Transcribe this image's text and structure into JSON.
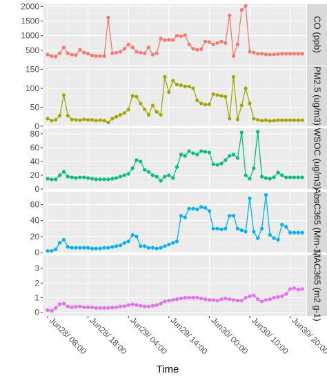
{
  "chart_data": {
    "type": "line",
    "xlabel": "Time",
    "x_tick_labels": [
      "Jun28/ 08:00",
      "Jun28/ 18:00",
      "Jun29/ 04:00",
      "Jun29/ 14:00",
      "Jun30/ 00:00",
      "Jun30/ 10:00",
      "Jun30/ 20:00"
    ],
    "x_tick_hours": [
      0,
      10,
      20,
      30,
      40,
      50,
      60
    ],
    "xlim_hours": [
      -1.2,
      64
    ],
    "x_hours": [
      0,
      1,
      2,
      3,
      4,
      5,
      6,
      7,
      8,
      9,
      10,
      11,
      12,
      13,
      14,
      15,
      16,
      17,
      18,
      19,
      20,
      21,
      22,
      23,
      24,
      25,
      26,
      27,
      28,
      29,
      30,
      31,
      32,
      33,
      34,
      35,
      36,
      37,
      38,
      39,
      40,
      41,
      42,
      43,
      44,
      45,
      46,
      47,
      48,
      49,
      50,
      51,
      52,
      53,
      54,
      55,
      56,
      57,
      58,
      59,
      60,
      61,
      62,
      63
    ],
    "grid": true,
    "legend": "none",
    "panels": [
      {
        "strip": "CO (ppb)",
        "color": "#F8766D",
        "ylim": [
          0,
          2080
        ],
        "yticks": [
          500,
          1000,
          1500,
          2000
        ],
        "ytick_labels": [
          "500",
          "1000",
          "1500",
          "2000"
        ],
        "values": [
          350,
          300,
          280,
          400,
          600,
          400,
          350,
          330,
          520,
          420,
          380,
          320,
          300,
          300,
          300,
          1620,
          400,
          420,
          450,
          550,
          700,
          600,
          450,
          420,
          400,
          600,
          350,
          400,
          900,
          850,
          860,
          850,
          1000,
          980,
          1020,
          700,
          550,
          520,
          540,
          800,
          780,
          700,
          750,
          800,
          750,
          1700,
          300,
          700,
          1880,
          2020,
          450,
          420,
          380,
          380,
          360,
          350,
          360,
          370,
          380,
          380,
          380,
          380,
          380,
          380
        ]
      },
      {
        "strip": "PM2.5 (ug/m3)",
        "color": "#A3A500",
        "ylim": [
          0,
          160
        ],
        "yticks": [
          0,
          50,
          100,
          150
        ],
        "ytick_labels": [
          "0",
          "50",
          "100",
          "150"
        ],
        "values": [
          20,
          15,
          17,
          28,
          82,
          28,
          18,
          17,
          16,
          18,
          17,
          17,
          15,
          16,
          15,
          10,
          20,
          25,
          30,
          35,
          44,
          80,
          78,
          60,
          45,
          30,
          55,
          38,
          30,
          130,
          90,
          120,
          110,
          108,
          105,
          105,
          100,
          68,
          60,
          57,
          58,
          85,
          82,
          80,
          78,
          20,
          130,
          18,
          55,
          100,
          60,
          20,
          17,
          15,
          16,
          14,
          15,
          16,
          16,
          16,
          16,
          16,
          16,
          16
        ]
      },
      {
        "strip": "WSOC (ug/m3)",
        "color": "#00BF7D",
        "ylim": [
          0,
          88
        ],
        "yticks": [
          0,
          20,
          40,
          60,
          80
        ],
        "ytick_labels": [
          "0",
          "20",
          "40",
          "60",
          "80"
        ],
        "values": [
          15,
          14,
          14,
          20,
          25,
          18,
          17,
          16,
          17,
          17,
          16,
          15,
          14,
          14,
          14,
          14,
          15,
          16,
          18,
          20,
          22,
          30,
          42,
          40,
          28,
          25,
          20,
          18,
          12,
          18,
          20,
          16,
          32,
          50,
          48,
          55,
          52,
          50,
          55,
          54,
          53,
          36,
          35,
          37,
          42,
          48,
          50,
          45,
          82,
          20,
          15,
          30,
          83,
          18,
          16,
          15,
          17,
          24,
          20,
          17,
          17,
          17,
          17,
          17
        ]
      },
      {
        "strip": "AbsC365 (Mm-1)",
        "color": "#00B0F6",
        "ylim": [
          0,
          76
        ],
        "yticks": [
          0,
          20,
          40,
          60
        ],
        "ytick_labels": [
          "0",
          "20",
          "40",
          "60"
        ],
        "values": [
          2,
          2,
          4,
          12,
          16,
          7,
          6,
          6,
          6,
          6,
          6,
          5,
          5,
          5,
          6,
          6,
          7,
          8,
          9,
          12,
          14,
          22,
          20,
          8,
          8,
          6,
          6,
          5,
          6,
          8,
          10,
          12,
          14,
          46,
          44,
          55,
          55,
          54,
          57,
          56,
          52,
          30,
          30,
          29,
          30,
          46,
          46,
          30,
          28,
          26,
          68,
          26,
          18,
          30,
          72,
          22,
          18,
          16,
          35,
          32,
          25,
          25,
          25,
          25
        ]
      },
      {
        "strip": "MAC365 (m2 g-1)",
        "color": "#E76BF3",
        "ylim": [
          -0.25,
          3.9
        ],
        "yticks": [
          0,
          1,
          2,
          3
        ],
        "ytick_labels": [
          "0",
          "1",
          "2",
          "3"
        ],
        "values": [
          0.15,
          0.1,
          0.3,
          0.55,
          0.6,
          0.4,
          0.35,
          0.38,
          0.4,
          0.35,
          0.35,
          0.35,
          0.3,
          0.3,
          0.3,
          0.3,
          0.32,
          0.35,
          0.4,
          0.42,
          0.5,
          0.55,
          0.5,
          0.45,
          0.4,
          0.4,
          0.45,
          0.5,
          0.6,
          0.75,
          0.8,
          0.85,
          0.9,
          0.95,
          1.0,
          1.0,
          1.0,
          1.0,
          0.95,
          0.9,
          0.85,
          0.85,
          0.8,
          0.9,
          0.95,
          0.9,
          0.85,
          0.8,
          0.8,
          1.0,
          1.1,
          1.15,
          0.9,
          0.75,
          0.85,
          0.9,
          1.0,
          1.05,
          1.1,
          1.25,
          1.6,
          1.65,
          1.55,
          1.6
        ]
      }
    ]
  }
}
